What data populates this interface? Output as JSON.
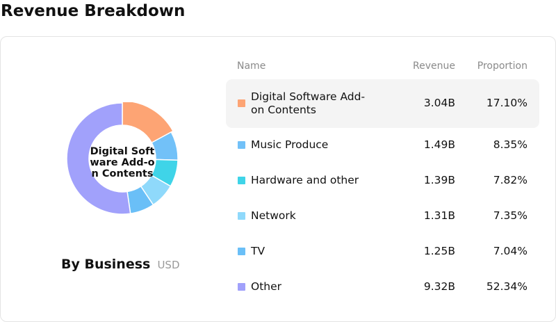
{
  "title": "Revenue Breakdown",
  "donut": {
    "center_label": "Digital Software Add-on Contents",
    "caption": "By Business",
    "unit": "USD"
  },
  "table": {
    "headers": {
      "name": "Name",
      "revenue": "Revenue",
      "proportion": "Proportion"
    },
    "selected_index": 0
  },
  "chart_data": {
    "type": "pie",
    "style": "donut",
    "categories": [
      "Digital Software Add-on Contents",
      "Music Produce",
      "Hardware and other",
      "Network",
      "TV",
      "Other"
    ],
    "revenue_labels": [
      "3.04B",
      "1.49B",
      "1.39B",
      "1.31B",
      "1.25B",
      "9.32B"
    ],
    "revenue_values": [
      3.04,
      1.49,
      1.39,
      1.31,
      1.25,
      9.32
    ],
    "proportion_labels": [
      "17.10%",
      "8.35%",
      "7.82%",
      "7.35%",
      "7.04%",
      "52.34%"
    ],
    "values": [
      17.1,
      8.35,
      7.82,
      7.35,
      7.04,
      52.34
    ],
    "colors": [
      "#fda474",
      "#72c1f8",
      "#3fd4e8",
      "#8fd9fb",
      "#6abff7",
      "#a1a1fb"
    ],
    "legend_placement": "right"
  }
}
